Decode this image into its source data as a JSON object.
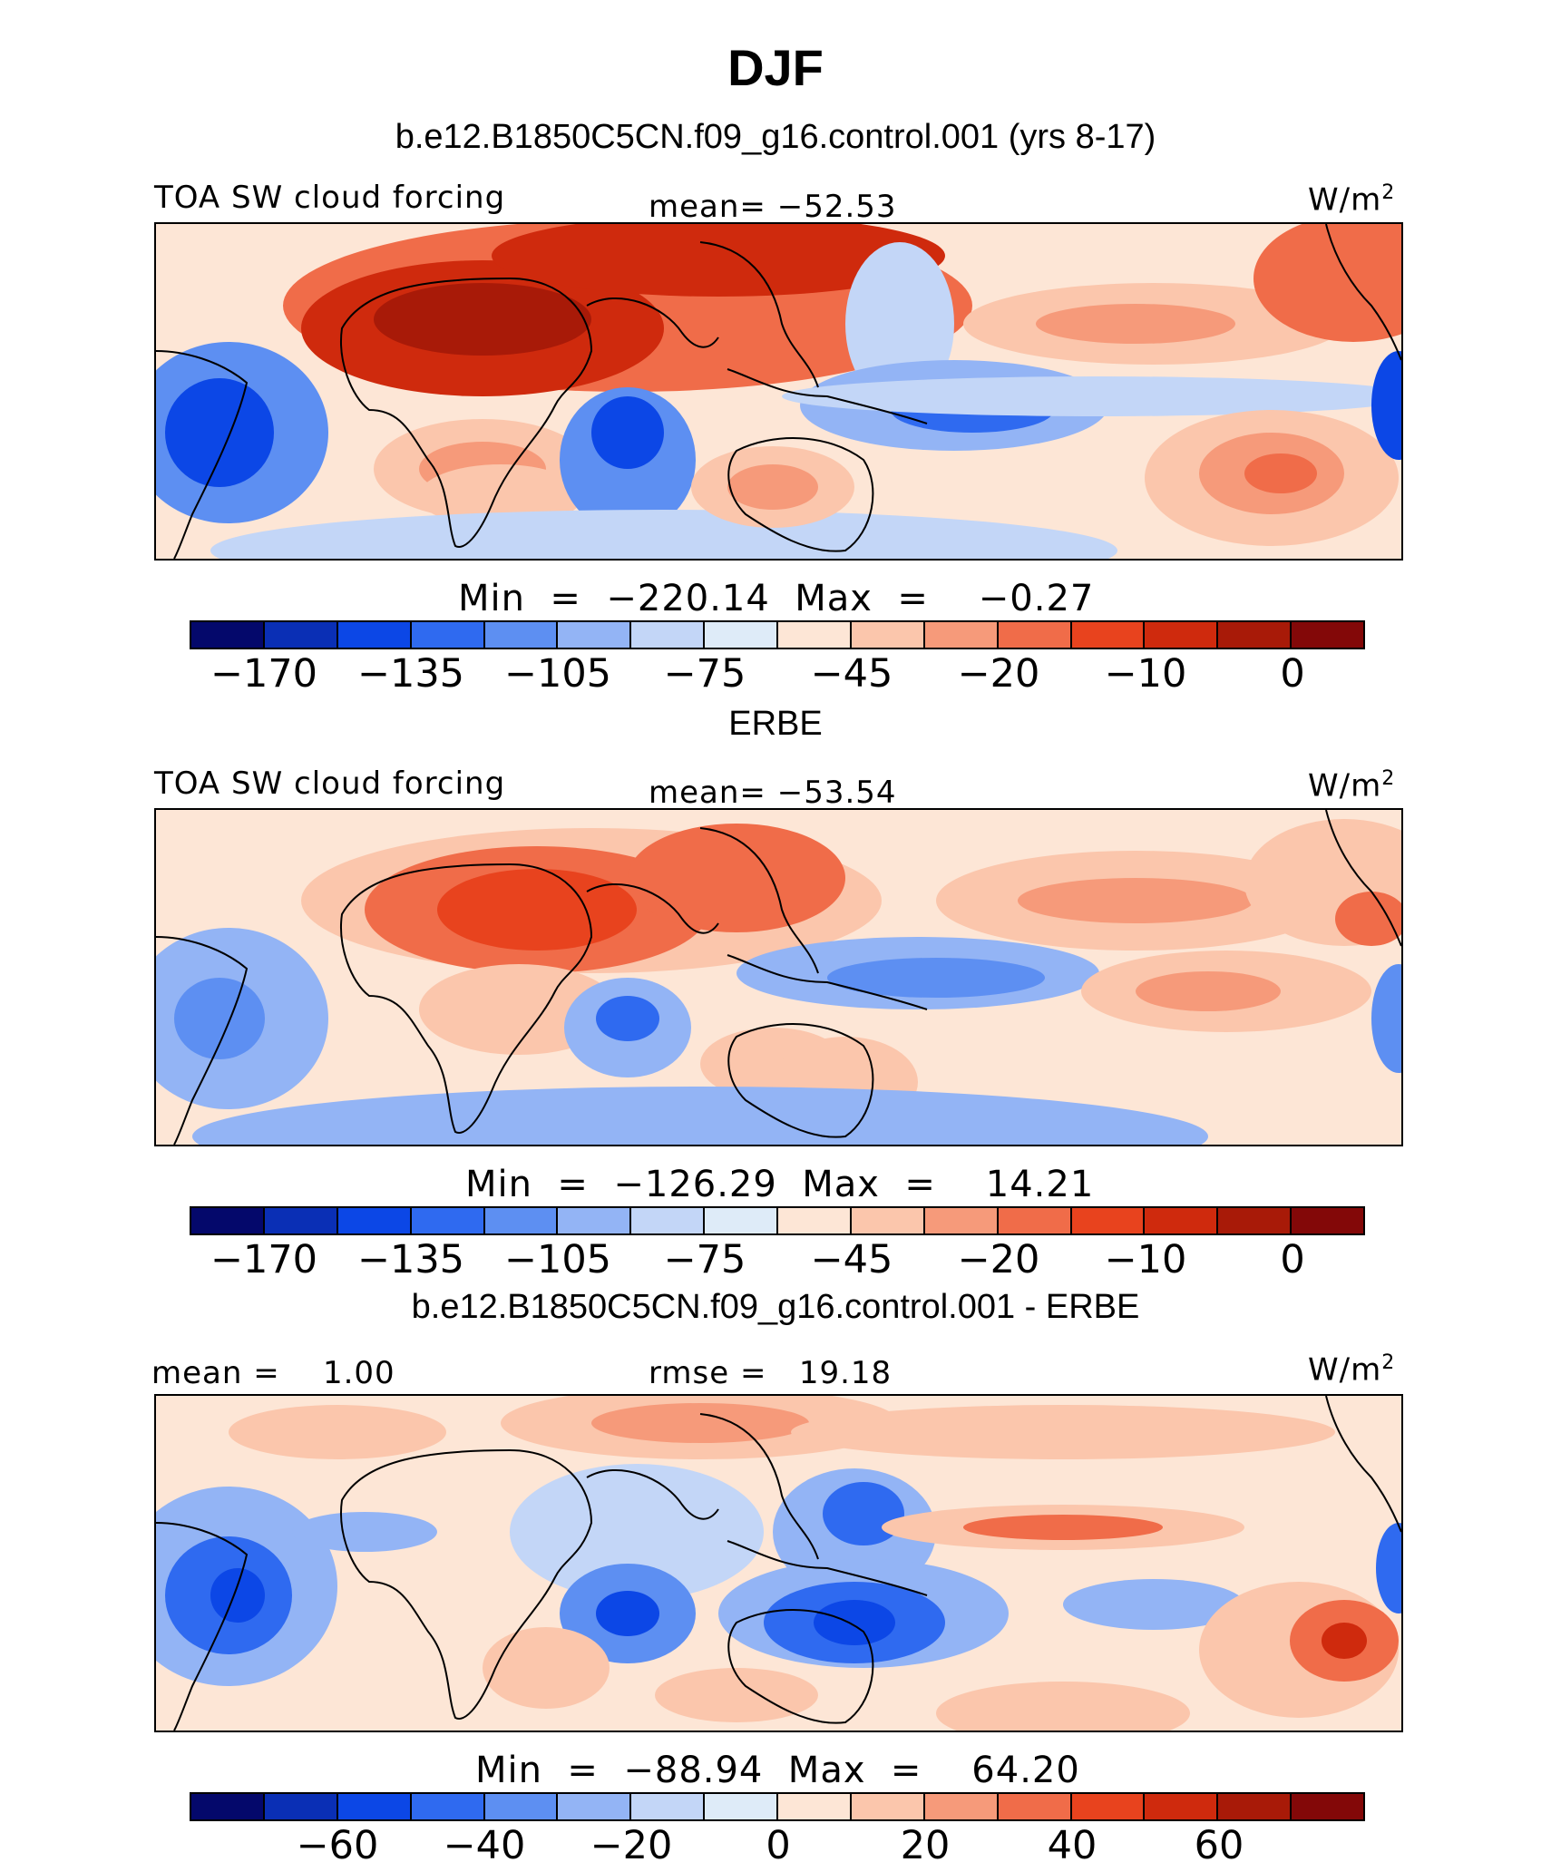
{
  "figure_title": "DJF",
  "palette": [
    "#04086b",
    "#0a2fb5",
    "#0c47e6",
    "#2f6af0",
    "#5d8ff2",
    "#93b4f5",
    "#c3d6f7",
    "#deebf8",
    "#fde6d6",
    "#fbc6ac",
    "#f69a7a",
    "#f06c49",
    "#e8431e",
    "#cf2a0d",
    "#a81a08",
    "#830808"
  ],
  "panels": [
    {
      "case_title": "b.e12.B1850C5CN.f09_g16.control.001 (yrs 8-17)",
      "left_label": "TOA SW cloud forcing",
      "center_label": "mean= −52.53",
      "units": "W/m",
      "units_sup": "2",
      "minmax": "Min  =  −220.14  Max  =    −0.27",
      "tick_labels": [
        "−170",
        "−135",
        "−105",
        "−75",
        "−45",
        "−20",
        "−10",
        "0"
      ]
    },
    {
      "case_title": "ERBE",
      "left_label": "TOA SW cloud forcing",
      "center_label": "mean= −53.54",
      "units": "W/m",
      "units_sup": "2",
      "minmax": "Min  =  −126.29  Max  =    14.21",
      "tick_labels": [
        "−170",
        "−135",
        "−105",
        "−75",
        "−45",
        "−20",
        "−10",
        "0"
      ]
    },
    {
      "case_title": "b.e12.B1850C5CN.f09_g16.control.001 - ERBE",
      "left_label": "mean =    1.00",
      "center_label": "rmse =   19.18",
      "units": "W/m",
      "units_sup": "2",
      "minmax": "Min  =  −88.94  Max  =    64.20",
      "tick_labels": [
        "−60",
        "−40",
        "−20",
        "0",
        "20",
        "40",
        "60"
      ]
    }
  ]
}
